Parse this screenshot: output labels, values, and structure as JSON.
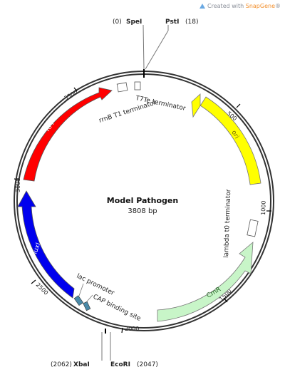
{
  "watermark": {
    "prefix": "Created with ",
    "brand": "SnapGene",
    "suffix": "®"
  },
  "plasmid": {
    "name": "Model Pathogen",
    "size_label": "3808 bp"
  },
  "ticks": [
    {
      "label": "500"
    },
    {
      "label": "1000"
    },
    {
      "label": "1500"
    },
    {
      "label": "2000"
    },
    {
      "label": "2500"
    },
    {
      "label": "3000"
    },
    {
      "label": "3500"
    }
  ],
  "features": {
    "ori": {
      "label": "ori",
      "color": "#ffff00"
    },
    "cmr": {
      "label": "CmR",
      "color": "#c8f5c8"
    },
    "luxi": {
      "label": "luxI",
      "color": "#0000ee"
    },
    "rfp": {
      "label": "RFP",
      "color": "#ff0000"
    }
  },
  "annotations": {
    "t7te": "T7Te terminator",
    "rrnb": "rrnB T1 terminator",
    "lambda": "lambda t0 terminator",
    "lac": "lac promoter",
    "cap": "CAP binding site"
  },
  "sites": {
    "spei": {
      "pos": "(0)",
      "name": "SpeI"
    },
    "psti": {
      "pos": "(18)",
      "name": "PstI"
    },
    "xbai": {
      "pos": "(2062)",
      "name": "XbaI"
    },
    "ecori": {
      "pos": "(2047)",
      "name": "EcoRI"
    }
  }
}
